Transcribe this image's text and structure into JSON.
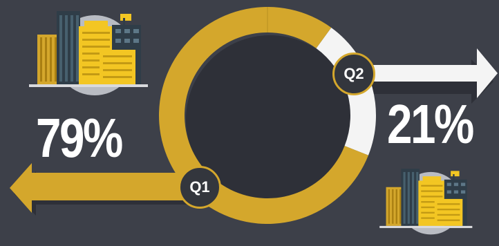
{
  "chart_data": {
    "type": "pie",
    "style": "donut",
    "categories": [
      "Q1",
      "Q2"
    ],
    "values": [
      79,
      21
    ],
    "value_labels": [
      "79%",
      "21%"
    ],
    "colors": {
      "Q1": "#d4a72c",
      "Q2": "#f4f4f4",
      "background": "#3d4049",
      "shadow": "#2e3038"
    },
    "title": "",
    "legend": "none"
  },
  "decor": {
    "buildings_icon": "city-buildings-illustration",
    "arrow_left_icon": "arrow-left-icon",
    "arrow_right_icon": "arrow-right-icon"
  }
}
